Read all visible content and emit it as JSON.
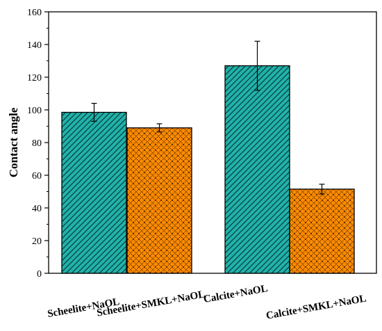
{
  "chart_data": {
    "type": "bar",
    "title": "",
    "xlabel": "",
    "ylabel": "Contact angle",
    "ylim": [
      0,
      160
    ],
    "yticks": [
      0,
      20,
      40,
      60,
      80,
      100,
      120,
      140,
      160
    ],
    "grid": false,
    "legend": "none",
    "categories": [
      "Scheelite+NaOL",
      "Scheelite+SMKL+NaOL",
      "Calcite+NaOL",
      "Calcite+SMKL+NaOL"
    ],
    "values": [
      98.5,
      89,
      127,
      51.5
    ],
    "errors": [
      5.5,
      2.5,
      15,
      3
    ],
    "bar_colors": [
      "#20b2aa",
      "#ff8c00",
      "#20b2aa",
      "#ff8c00"
    ],
    "bar_patterns": [
      "diagonal-hatch",
      "crosshatch-dots",
      "diagonal-hatch",
      "crosshatch-dots"
    ]
  }
}
